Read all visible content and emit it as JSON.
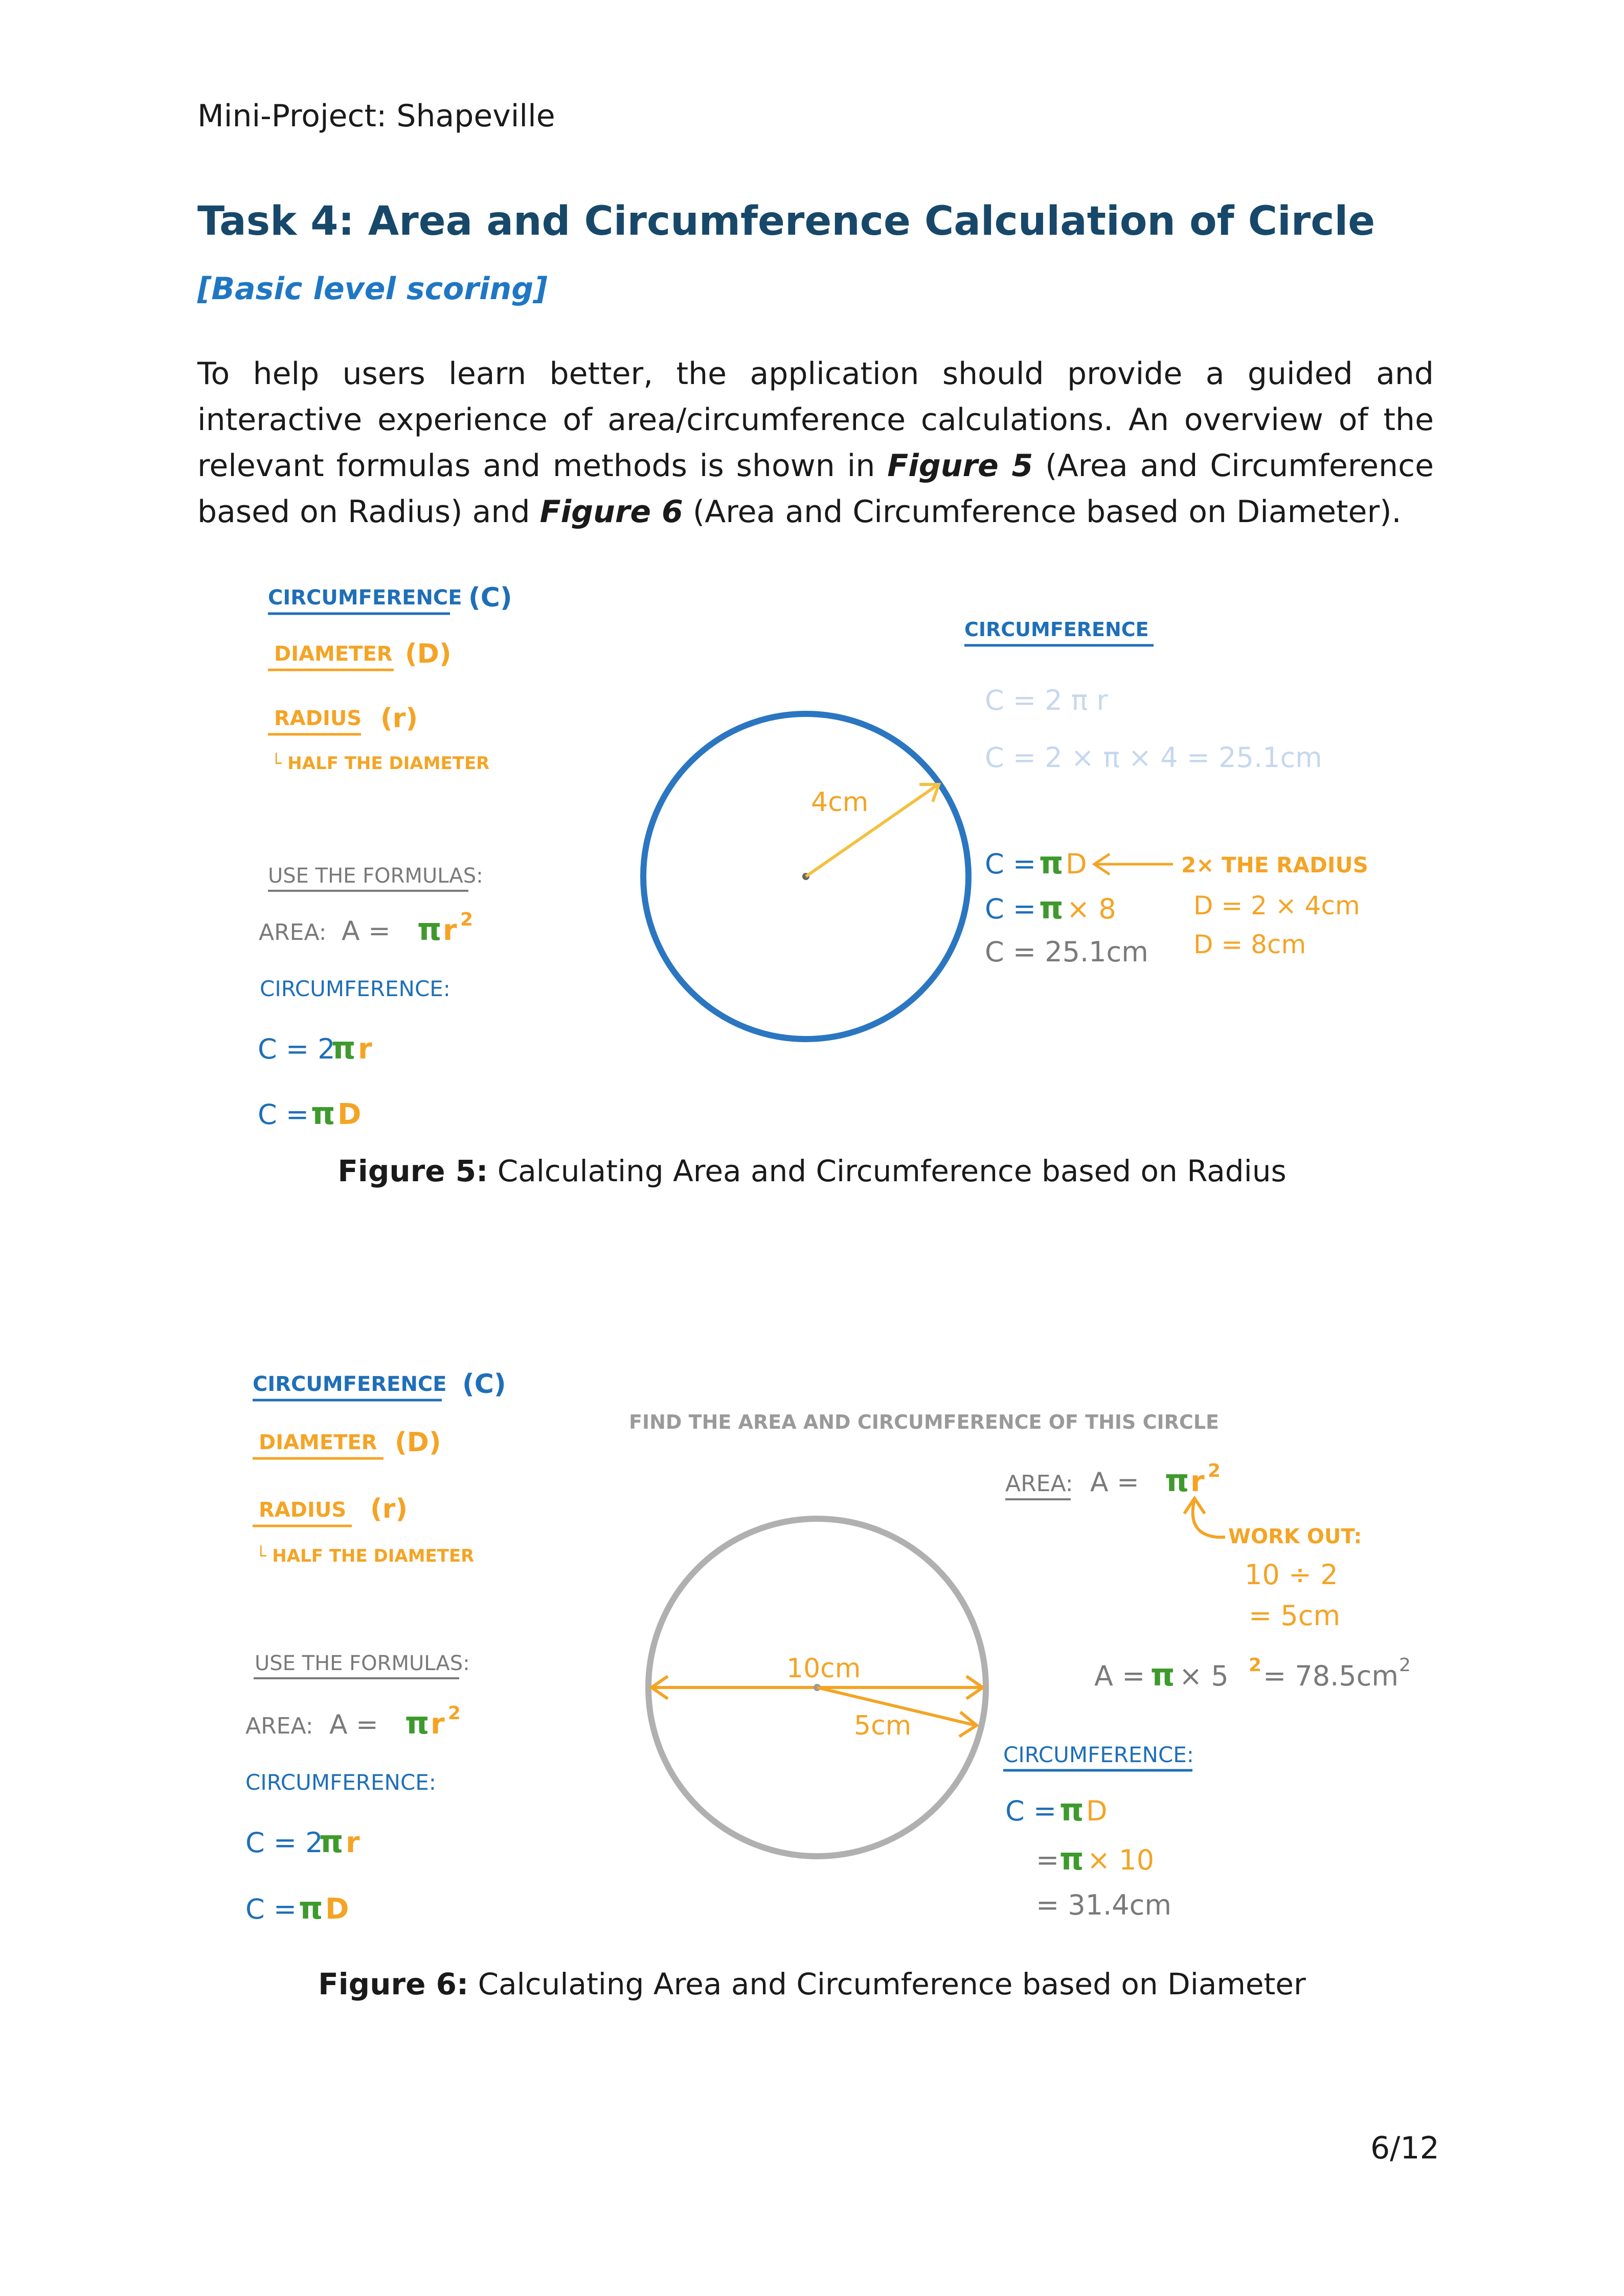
{
  "header": "Mini-Project: Shapeville",
  "title": "Task 4: Area and Circumference Calculation of Circle",
  "subtitle": "[Basic level scoring]",
  "paragraph": {
    "part1": "To help users learn better, the application should provide a guided and interactive experience of area/circumference calculations. An overview of the relevant formulas and methods is shown in ",
    "fig5_ref": "Figure 5",
    "part2": " (Area and Circumference based on Radius) and ",
    "fig6_ref": "Figure 6",
    "part3": " (Area and Circumference based on Diameter).",
    "period": ""
  },
  "legend": {
    "circumference": "CIRCUMFERENCE",
    "circumference_sym": "(C)",
    "diameter": "DIAMETER",
    "diameter_sym": "(D)",
    "radius": "RADIUS",
    "radius_sym": "(r)",
    "half": "└ HALF THE DIAMETER",
    "use_formulas": "USE THE FORMULAS:",
    "area_label": "AREA:",
    "area_formula_a": "A =",
    "circ_label": "CIRCUMFERENCE:",
    "circ_f1_a": "C = 2",
    "circ_f2_a": "C ="
  },
  "symbols": {
    "pi": "π",
    "r": "r",
    "two": "2",
    "D": "D"
  },
  "figure5": {
    "circ_heading": "CIRCUMFERENCE",
    "faded1": "C = 2 π r",
    "faded2": "C = 2 × π × 4 = 25.1cm",
    "radius_label": "4cm",
    "c1_a": "C =",
    "c2_a": "C =",
    "c2_b": "× 8",
    "c3": "C = 25.1cm",
    "note1": "2× THE RADIUS",
    "note2": "D = 2 × 4cm",
    "note3": "D = 8cm",
    "caption_bold": "Figure 5:",
    "caption": " Calculating Area and Circumference based on Radius"
  },
  "figure6": {
    "instruction": "FIND THE AREA AND CIRCUMFERENCE OF THIS CIRCLE",
    "area_label": "AREA:",
    "area_a": "A =",
    "work_out": "WORK OUT:",
    "work1": "10 ÷ 2",
    "work2": "= 5cm",
    "result_a": "A =",
    "result_b": "× 5",
    "result_c": "= 78.5cm",
    "diameter_label": "10cm",
    "radius_label": "5cm",
    "circ_label": "CIRCUMFERENCE:",
    "c1_a": "C =",
    "c2_a": "=",
    "c2_b": "× 10",
    "c3": "= 31.4cm",
    "caption_bold": "Figure 6:",
    "caption": " Calculating Area and Circumference based on Diameter"
  },
  "page_number": "6/12",
  "colors": {
    "blue": "#1f6fb8",
    "orange": "#f4a425",
    "green": "#3e9a2d",
    "gray": "#7a7a7a",
    "title": "#17486a",
    "circle_blue": "#2b76c1",
    "circle_gray": "#b0b0b0"
  }
}
